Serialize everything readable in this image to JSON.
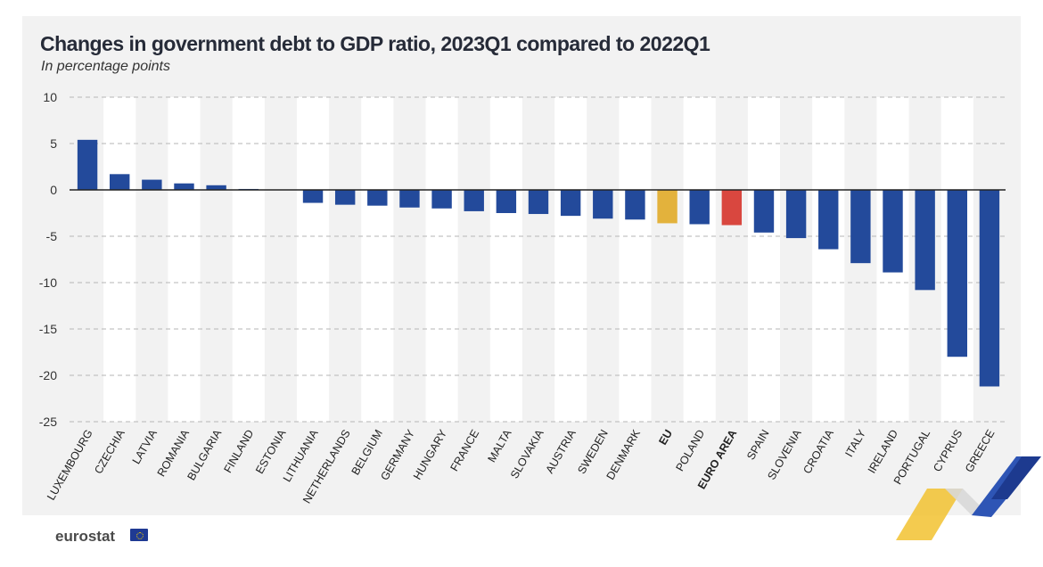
{
  "chart_data": {
    "type": "bar",
    "title": "Changes in government debt to GDP ratio, 2023Q1 compared to 2022Q1",
    "subtitle": "In percentage points",
    "categories": [
      "LUXEMBOURG",
      "CZECHIA",
      "LATVIA",
      "ROMANIA",
      "BULGARIA",
      "FINLAND",
      "ESTONIA",
      "LITHUANIA",
      "NETHERLANDS",
      "BELGIUM",
      "GERMANY",
      "HUNGARY",
      "FRANCE",
      "MALTA",
      "SLOVAKIA",
      "AUSTRIA",
      "SWEDEN",
      "DENMARK",
      "EU",
      "POLAND",
      "EURO AREA",
      "SPAIN",
      "SLOVENIA",
      "CROATIA",
      "ITALY",
      "IRELAND",
      "PORTUGAL",
      "CYPRUS",
      "GREECE"
    ],
    "values": [
      5.4,
      1.7,
      1.1,
      0.7,
      0.5,
      0.1,
      0.0,
      -1.4,
      -1.6,
      -1.7,
      -1.9,
      -2.0,
      -2.3,
      -2.5,
      -2.6,
      -2.8,
      -3.1,
      -3.2,
      -3.6,
      -3.7,
      -3.8,
      -4.6,
      -5.2,
      -6.4,
      -7.9,
      -8.9,
      -10.8,
      -18.0,
      -21.2
    ],
    "highlight": {
      "EU": "#e3b23c",
      "EURO AREA": "#d9473f"
    },
    "bold_categories": [
      "EU",
      "EURO AREA"
    ],
    "bar_color": "#234a9b",
    "ylim": [
      -25,
      10
    ],
    "yticks": [
      10,
      5,
      0,
      -5,
      -10,
      -15,
      -20,
      -25
    ],
    "xlabel": "",
    "ylabel": "",
    "grid": "horizontal-dashed",
    "legend": "none"
  },
  "footer": {
    "logo_text": "eurostat",
    "logo_icon": "eu-flag-icon"
  }
}
